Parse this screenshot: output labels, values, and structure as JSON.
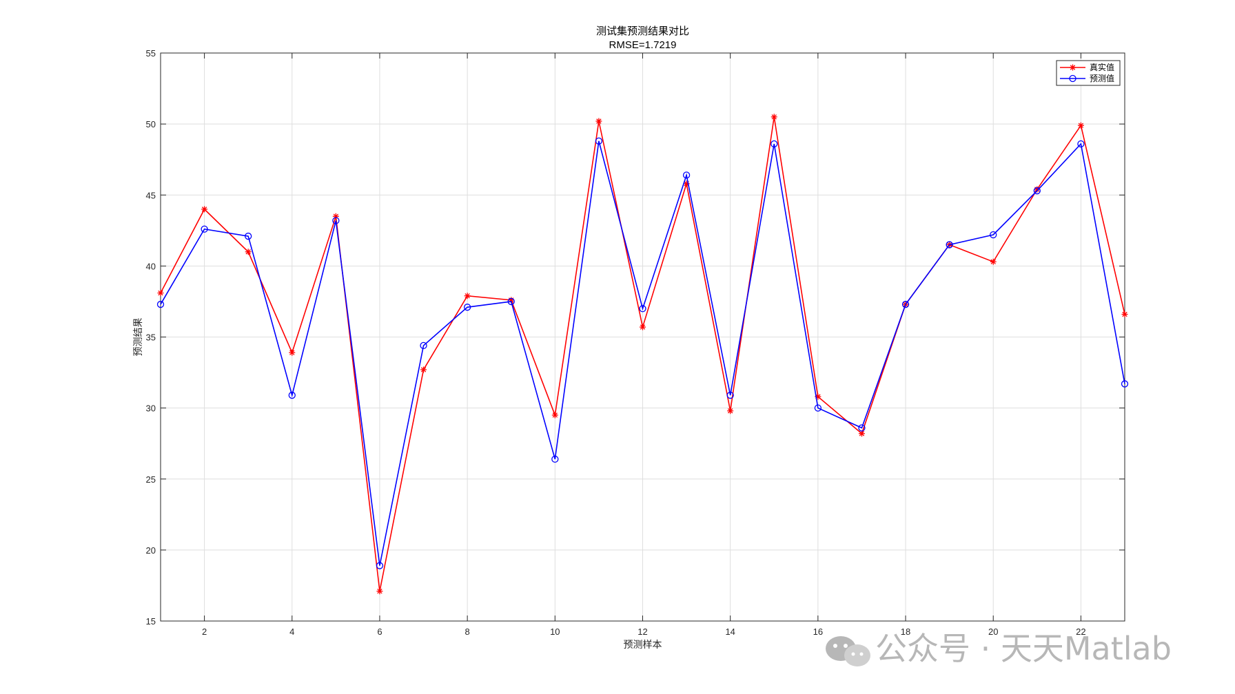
{
  "chart_data": {
    "type": "line",
    "title": "测试集预测结果对比",
    "subtitle": "RMSE=1.7219",
    "xlabel": "预测样本",
    "ylabel": "预测结果",
    "xlim": [
      1,
      23
    ],
    "ylim": [
      15,
      55
    ],
    "x_ticks": [
      2,
      4,
      6,
      8,
      10,
      12,
      14,
      16,
      18,
      20,
      22
    ],
    "y_ticks": [
      15,
      20,
      25,
      30,
      35,
      40,
      45,
      50,
      55
    ],
    "grid": true,
    "legend_position": "top-right",
    "x": [
      1,
      2,
      3,
      4,
      5,
      6,
      7,
      8,
      9,
      10,
      11,
      12,
      13,
      14,
      15,
      16,
      17,
      18,
      19,
      20,
      21,
      22,
      23
    ],
    "series": [
      {
        "name": "真实值",
        "color": "#ff0000",
        "marker": "asterisk",
        "values": [
          38.1,
          44.0,
          41.0,
          33.9,
          43.5,
          17.1,
          32.7,
          37.9,
          37.6,
          29.5,
          50.2,
          35.7,
          45.8,
          29.8,
          50.5,
          30.8,
          28.2,
          37.3,
          41.5,
          40.3,
          45.4,
          49.9,
          36.6
        ]
      },
      {
        "name": "预测值",
        "color": "#0000ff",
        "marker": "circle",
        "values": [
          37.3,
          42.6,
          42.1,
          30.9,
          43.2,
          18.9,
          34.4,
          37.1,
          37.5,
          26.4,
          48.8,
          37.0,
          46.4,
          30.9,
          48.6,
          30.0,
          28.6,
          37.3,
          41.5,
          42.2,
          45.3,
          48.6,
          31.7
        ]
      }
    ]
  },
  "watermark": {
    "text": "公众号 · 天天Matlab",
    "icon": "wechat-icon"
  }
}
